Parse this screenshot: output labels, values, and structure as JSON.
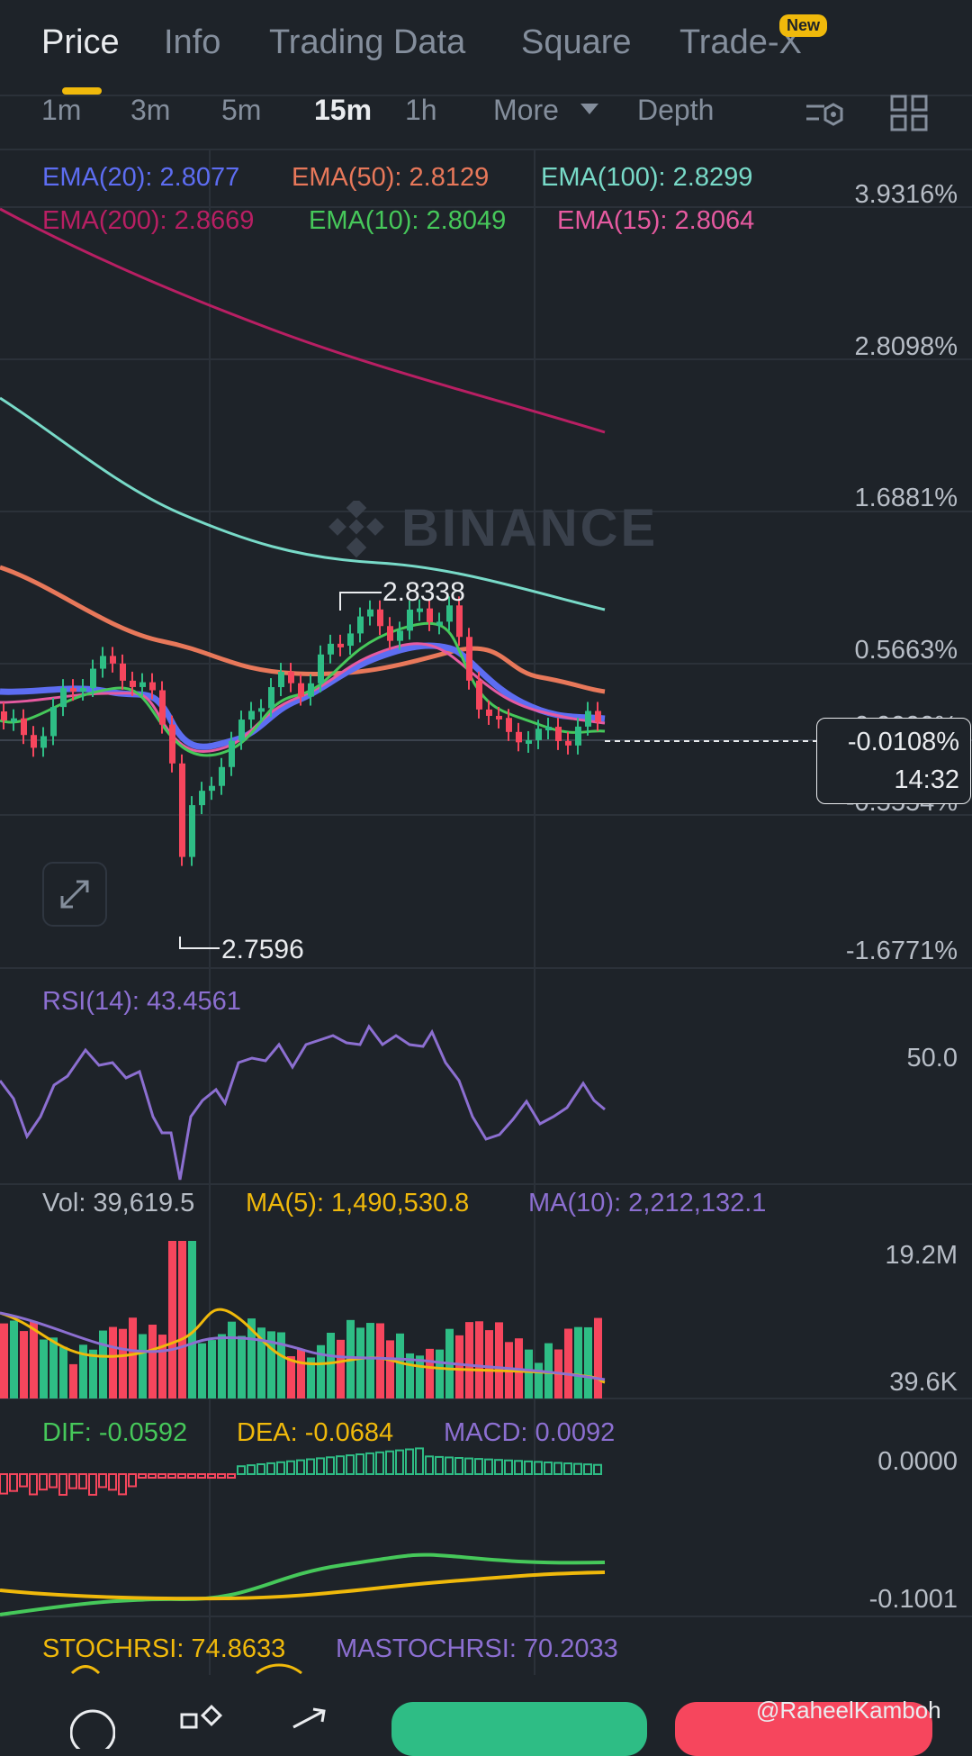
{
  "tabs": [
    {
      "label": "Price",
      "active": true
    },
    {
      "label": "Info"
    },
    {
      "label": "Trading Data"
    },
    {
      "label": "Square"
    },
    {
      "label": "Trade-X",
      "badge": "New"
    }
  ],
  "intervals": [
    {
      "label": "1m"
    },
    {
      "label": "3m"
    },
    {
      "label": "5m"
    },
    {
      "label": "15m",
      "active": true
    },
    {
      "label": "1h"
    },
    {
      "label": "More"
    },
    {
      "label": "Depth"
    }
  ],
  "toolbar_icons": [
    "indicator-settings-icon",
    "layout-grid-icon"
  ],
  "ema": [
    {
      "label": "EMA(20): 2.8077",
      "color": "#5d6df2"
    },
    {
      "label": "EMA(50): 2.8129",
      "color": "#e8785a"
    },
    {
      "label": "EMA(100): 2.8299",
      "color": "#78dac8"
    },
    {
      "label": "EMA(200): 2.8669",
      "color": "#b81f63"
    },
    {
      "label": "EMA(10): 2.8049",
      "color": "#46c85a"
    },
    {
      "label": "EMA(15): 2.8064",
      "color": "#e65aa0"
    }
  ],
  "price_axis": [
    "3.9316%",
    "2.8098%",
    "1.6881%",
    "0.5663%",
    "0.0000%",
    "-0.5554%",
    "-1.6771%"
  ],
  "watermark": "BINANCE",
  "high_label": "2.8338",
  "low_label": "2.7596",
  "current": {
    "change": "-0.0108%",
    "countdown": "14:32"
  },
  "rsi": {
    "label": "RSI(14): 43.4561",
    "axis": "50.0"
  },
  "volume": {
    "vol": "Vol: 39,619.5",
    "ma5": "MA(5): 1,490,530.8",
    "ma10": "MA(10): 2,212,132.1",
    "axis_top": "19.2M",
    "axis_bottom": "39.6K"
  },
  "macd": {
    "dif": "DIF: -0.0592",
    "dea": "DEA: -0.0684",
    "macd": "MACD: 0.0092",
    "axis_top": "0.0000",
    "axis_bottom": "-0.1001"
  },
  "stochrsi": {
    "stoch": "STOCHRSI: 74.8633",
    "ma": "MASTOCHRSI: 70.2033"
  },
  "credit": "@RaheelKamboh",
  "colors": {
    "bg": "#1e2329",
    "up": "#2ebd85",
    "down": "#f6465d",
    "accent": "#f0b90b",
    "rsi": "#8c6fd1",
    "ma5": "#f0b90b",
    "ma10": "#8c6fd1",
    "dif": "#46c85a",
    "dea": "#f0b90b"
  }
}
